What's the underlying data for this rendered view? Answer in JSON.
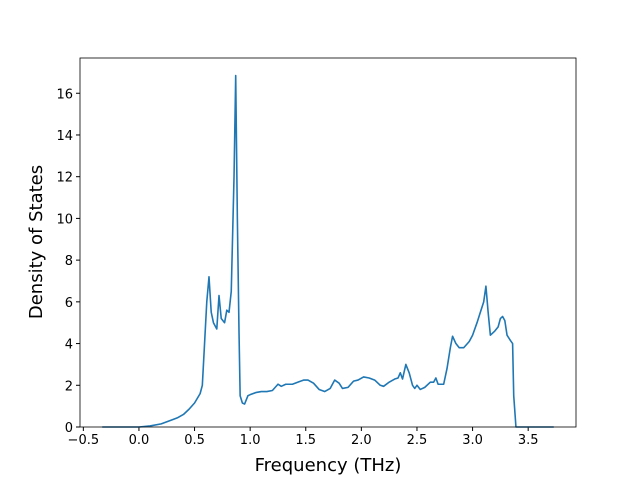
{
  "chart_data": {
    "type": "line",
    "xlabel": "Frequency (THz)",
    "ylabel": "Density of States",
    "x": [
      -0.33,
      -0.2,
      -0.1,
      0.0,
      0.1,
      0.2,
      0.3,
      0.35,
      0.4,
      0.45,
      0.5,
      0.55,
      0.57,
      0.59,
      0.61,
      0.63,
      0.65,
      0.67,
      0.7,
      0.72,
      0.74,
      0.77,
      0.79,
      0.81,
      0.83,
      0.855,
      0.87,
      0.885,
      0.9,
      0.91,
      0.93,
      0.95,
      0.98,
      1.0,
      1.05,
      1.1,
      1.15,
      1.2,
      1.25,
      1.28,
      1.32,
      1.38,
      1.43,
      1.48,
      1.52,
      1.57,
      1.62,
      1.67,
      1.72,
      1.76,
      1.8,
      1.83,
      1.88,
      1.93,
      1.97,
      2.02,
      2.07,
      2.12,
      2.17,
      2.2,
      2.25,
      2.3,
      2.33,
      2.35,
      2.37,
      2.4,
      2.43,
      2.46,
      2.48,
      2.5,
      2.53,
      2.57,
      2.62,
      2.65,
      2.67,
      2.69,
      2.74,
      2.77,
      2.8,
      2.82,
      2.85,
      2.88,
      2.92,
      2.97,
      3.0,
      3.04,
      3.07,
      3.1,
      3.12,
      3.14,
      3.16,
      3.2,
      3.23,
      3.25,
      3.27,
      3.29,
      3.31,
      3.34,
      3.36,
      3.37,
      3.39,
      3.5,
      3.6,
      3.73
    ],
    "series": [
      {
        "color": "#1f77b4",
        "values": [
          0,
          0,
          0,
          0,
          0.05,
          0.15,
          0.35,
          0.45,
          0.6,
          0.85,
          1.15,
          1.6,
          2.0,
          4.0,
          6.0,
          7.2,
          5.5,
          5.0,
          4.7,
          6.3,
          5.2,
          5.0,
          5.6,
          5.5,
          6.5,
          12,
          16.85,
          10,
          4.5,
          1.5,
          1.15,
          1.1,
          1.5,
          1.55,
          1.65,
          1.7,
          1.7,
          1.75,
          2.05,
          1.95,
          2.05,
          2.05,
          2.15,
          2.25,
          2.25,
          2.1,
          1.8,
          1.7,
          1.85,
          2.25,
          2.1,
          1.85,
          1.9,
          2.2,
          2.25,
          2.4,
          2.35,
          2.25,
          2.0,
          1.95,
          2.15,
          2.3,
          2.35,
          2.6,
          2.3,
          3.0,
          2.6,
          2.0,
          1.85,
          2.0,
          1.8,
          1.9,
          2.15,
          2.15,
          2.35,
          2.05,
          2.05,
          2.8,
          3.8,
          4.35,
          4.0,
          3.8,
          3.8,
          4.1,
          4.4,
          5.0,
          5.5,
          6.0,
          6.75,
          5.5,
          4.4,
          4.6,
          4.8,
          5.2,
          5.3,
          5.1,
          4.4,
          4.15,
          4.0,
          1.5,
          0,
          0,
          0,
          0
        ]
      }
    ],
    "xlim": [
      -0.53,
      3.93
    ],
    "ylim": [
      0,
      17.69
    ],
    "xticks": [
      {
        "value": -0.5,
        "label": "−0.5"
      },
      {
        "value": 0,
        "label": "0.0"
      },
      0.5,
      {
        "value": 1,
        "label": "1.0"
      },
      1.5,
      {
        "value": 2,
        "label": "2.0"
      },
      2.5,
      {
        "value": 3,
        "label": "3.0"
      },
      3.5
    ],
    "yticks": [
      0,
      2,
      4,
      6,
      8,
      10,
      12,
      14,
      16
    ]
  }
}
